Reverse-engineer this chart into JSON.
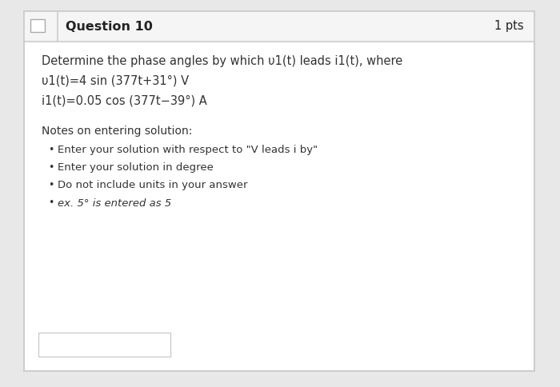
{
  "header_text": "Question 10",
  "pts_text": "1 pts",
  "header_bg": "#f5f5f5",
  "header_border": "#cccccc",
  "body_bg": "#ffffff",
  "outer_bg": "#e8e8e8",
  "title_fontsize": 11,
  "body_fontsize": 10.5,
  "small_fontsize": 10,
  "question_line1": "Determine the phase angles by which υ1(t) leads i1(t), where",
  "question_line2": "υ1(t)=4 sin (377t+31°) V",
  "question_line3": "i1(t)=0.05 cos (377t−39°) A",
  "notes_header": "Notes on entering solution:",
  "bullet1": "Enter your solution with respect to \"V leads i by\"",
  "bullet2": "Enter your solution in degree",
  "bullet3": "Do not include units in your answer",
  "bullet4": "ex. 5° is entered as 5",
  "input_box_color": "#ffffff",
  "input_box_border": "#cccccc",
  "text_color": "#333333",
  "header_text_color": "#222222",
  "gray_text": "#555555"
}
